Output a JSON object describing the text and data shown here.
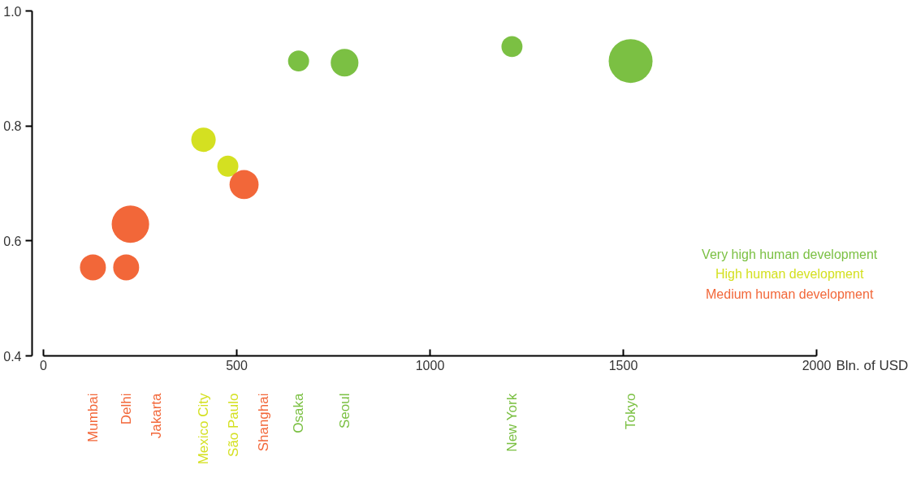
{
  "chart_data": {
    "type": "bubble",
    "xlabel": "Bln. of USD",
    "xlim": [
      0,
      2000
    ],
    "ylim": [
      0.4,
      1.0
    ],
    "xticks": [
      0,
      500,
      1000,
      1500,
      2000
    ],
    "yticks": [
      0.4,
      0.6,
      0.8,
      {
        "value": 1.0,
        "label": "1.0"
      }
    ],
    "grid": false,
    "legend": "right",
    "series": [
      {
        "name": "Very high human development",
        "color": "#7bc043",
        "x": [
          660,
          779,
          1212,
          1519
        ],
        "values": [
          0.913,
          0.91,
          0.938,
          0.913
        ],
        "sizes": [
          0.23,
          0.4,
          0.23,
          1
        ]
      },
      {
        "name": "High human development",
        "color": "#d4e021",
        "x": [
          414,
          477
        ],
        "values": [
          0.776,
          0.73
        ],
        "sizes": [
          0.31,
          0.23
        ]
      },
      {
        "name": "Medium human development",
        "color": "#f26739",
        "x": [
          128,
          214,
          225,
          519
        ],
        "values": [
          0.554,
          0.554,
          0.629,
          0.698
        ],
        "sizes": [
          0.35,
          0.35,
          0.73,
          0.44
        ]
      }
    ],
    "annotations": [
      "Mumbai",
      "Delhi",
      "Jakarta",
      "Mexico City",
      "São Paulo",
      "Shanghai",
      "Osaka",
      "Seoul",
      "New York",
      "Tokyo"
    ]
  }
}
